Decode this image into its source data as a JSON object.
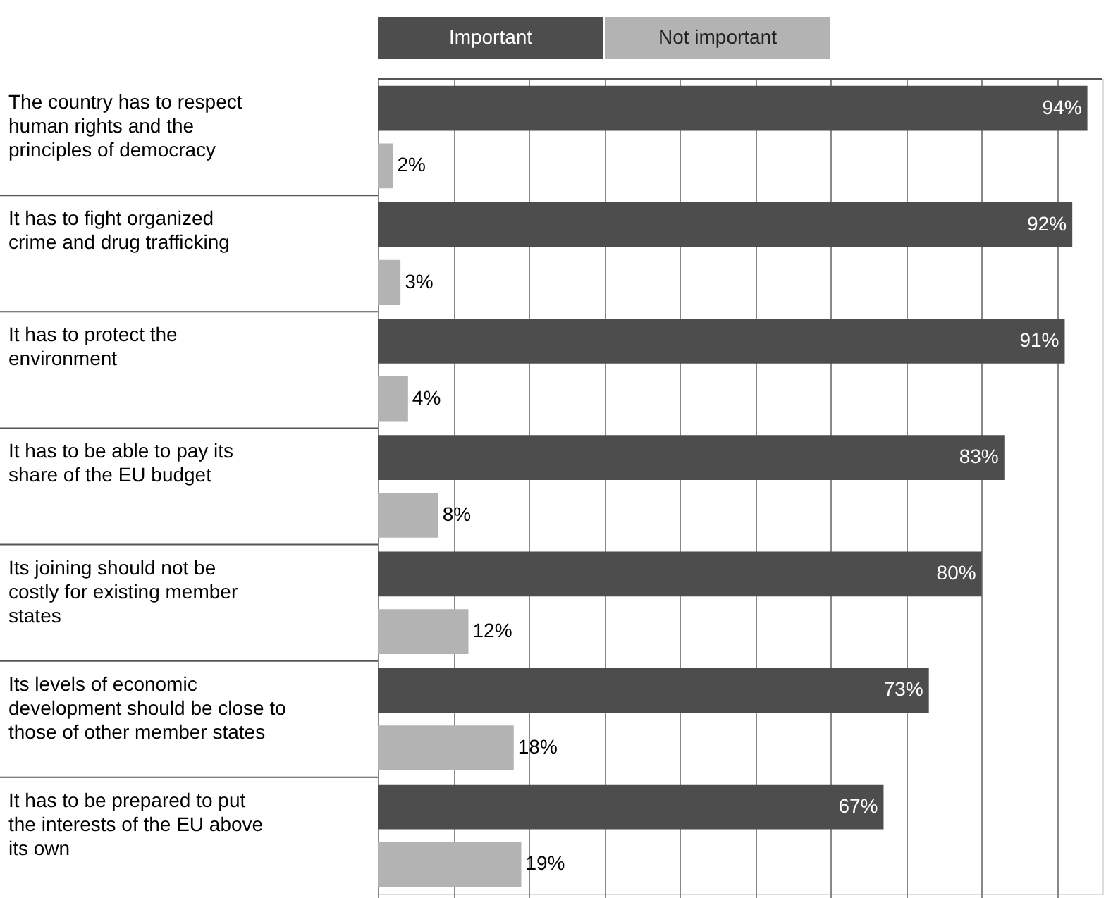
{
  "chart_data": {
    "type": "bar",
    "orientation": "horizontal",
    "categories": [
      "The country has to respect human rights and the principles of democracy",
      "It has to fight organized crime and drug trafficking",
      "It has to protect the environment",
      "It has to be able to pay its share of the EU budget",
      "Its joining should not be costly for existing member states",
      "Its levels of economic development should be close to those of other member states",
      "It has to be prepared to put the interests of the EU above its own"
    ],
    "series": [
      {
        "name": "Important",
        "color": "#4d4d4d",
        "values": [
          94,
          92,
          91,
          83,
          80,
          73,
          67
        ],
        "value_labels": [
          "94%",
          "92%",
          "91%",
          "83%",
          "80%",
          "73%",
          "67%"
        ]
      },
      {
        "name": "Not important",
        "color": "#b3b3b3",
        "values": [
          2,
          3,
          4,
          8,
          12,
          18,
          19
        ],
        "value_labels": [
          "2%",
          "3%",
          "4%",
          "8%",
          "12%",
          "18%",
          "19%"
        ]
      }
    ],
    "xlim": [
      0,
      96
    ],
    "xticks": [
      {
        "value": 0,
        "label": null
      },
      {
        "value": 10,
        "label": null
      },
      {
        "value": 20,
        "label": null
      },
      {
        "value": 30,
        "label": null
      },
      {
        "value": 40,
        "label": null
      },
      {
        "value": 50,
        "label": null
      },
      {
        "value": 60,
        "label": null
      },
      {
        "value": 70,
        "label": null
      },
      {
        "value": 80,
        "label": null
      },
      {
        "value": 90,
        "label": null
      }
    ],
    "grid": "x",
    "legend": "top",
    "tick_labels": "y"
  }
}
